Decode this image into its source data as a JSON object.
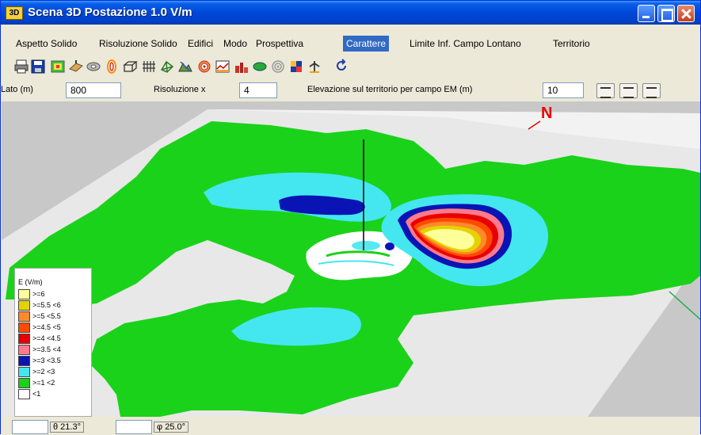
{
  "window": {
    "title": "Scena 3D Postazione 1.0 V/m",
    "icon_text": "3D"
  },
  "menu": [
    "Aspetto Solido",
    "Risoluzione Solido",
    "Edifici",
    "Modo",
    "Prospettiva",
    "Carattere",
    "Limite Inf. Campo Lontano",
    "Territorio"
  ],
  "menu_active": "Carattere",
  "toolbar_icons": [
    "print-icon",
    "save-icon",
    "surface-icon",
    "flat-surface-icon",
    "cylinder-icon",
    "ellipse-icon",
    "box-icon",
    "grid-icon",
    "wireframe-icon",
    "terrain-icon",
    "target-icon",
    "profile-icon",
    "buildings-icon",
    "ellipsoid-icon",
    "rings-icon",
    "color-cube-icon",
    "antenna-icon",
    "refresh-icon"
  ],
  "params": {
    "lato_label": "Lato (m)",
    "lato_value": "800",
    "risoluzione_label": "Risoluzione x",
    "risoluzione_value": "4",
    "elevazione_label": "Elevazione sul territorio per campo EM (m)",
    "elevazione_value": "10"
  },
  "scene": {
    "north_label": "N",
    "legend": {
      "title": "E (V/m)",
      "items": [
        {
          "color": "#ffff99",
          "label": ">=6"
        },
        {
          "color": "#e3d400",
          "label": ">=5.5 <6"
        },
        {
          "color": "#ff8a2a",
          "label": ">=5   <5.5"
        },
        {
          "color": "#ff4a00",
          "label": ">=4.5 <5"
        },
        {
          "color": "#e80000",
          "label": ">=4    <4.5"
        },
        {
          "color": "#ff7a8c",
          "label": ">=3.5 <4"
        },
        {
          "color": "#0a14b4",
          "label": ">=3    <3.5"
        },
        {
          "color": "#44e7f0",
          "label": ">=2    <3"
        },
        {
          "color": "#1ad21a",
          "label": ">=1    <2"
        },
        {
          "color": "#ffffff",
          "label": "<1"
        }
      ]
    }
  },
  "status": {
    "field1": "",
    "azimuth": "θ 21.3°",
    "field2": "",
    "elevation": "φ 25.0°"
  }
}
